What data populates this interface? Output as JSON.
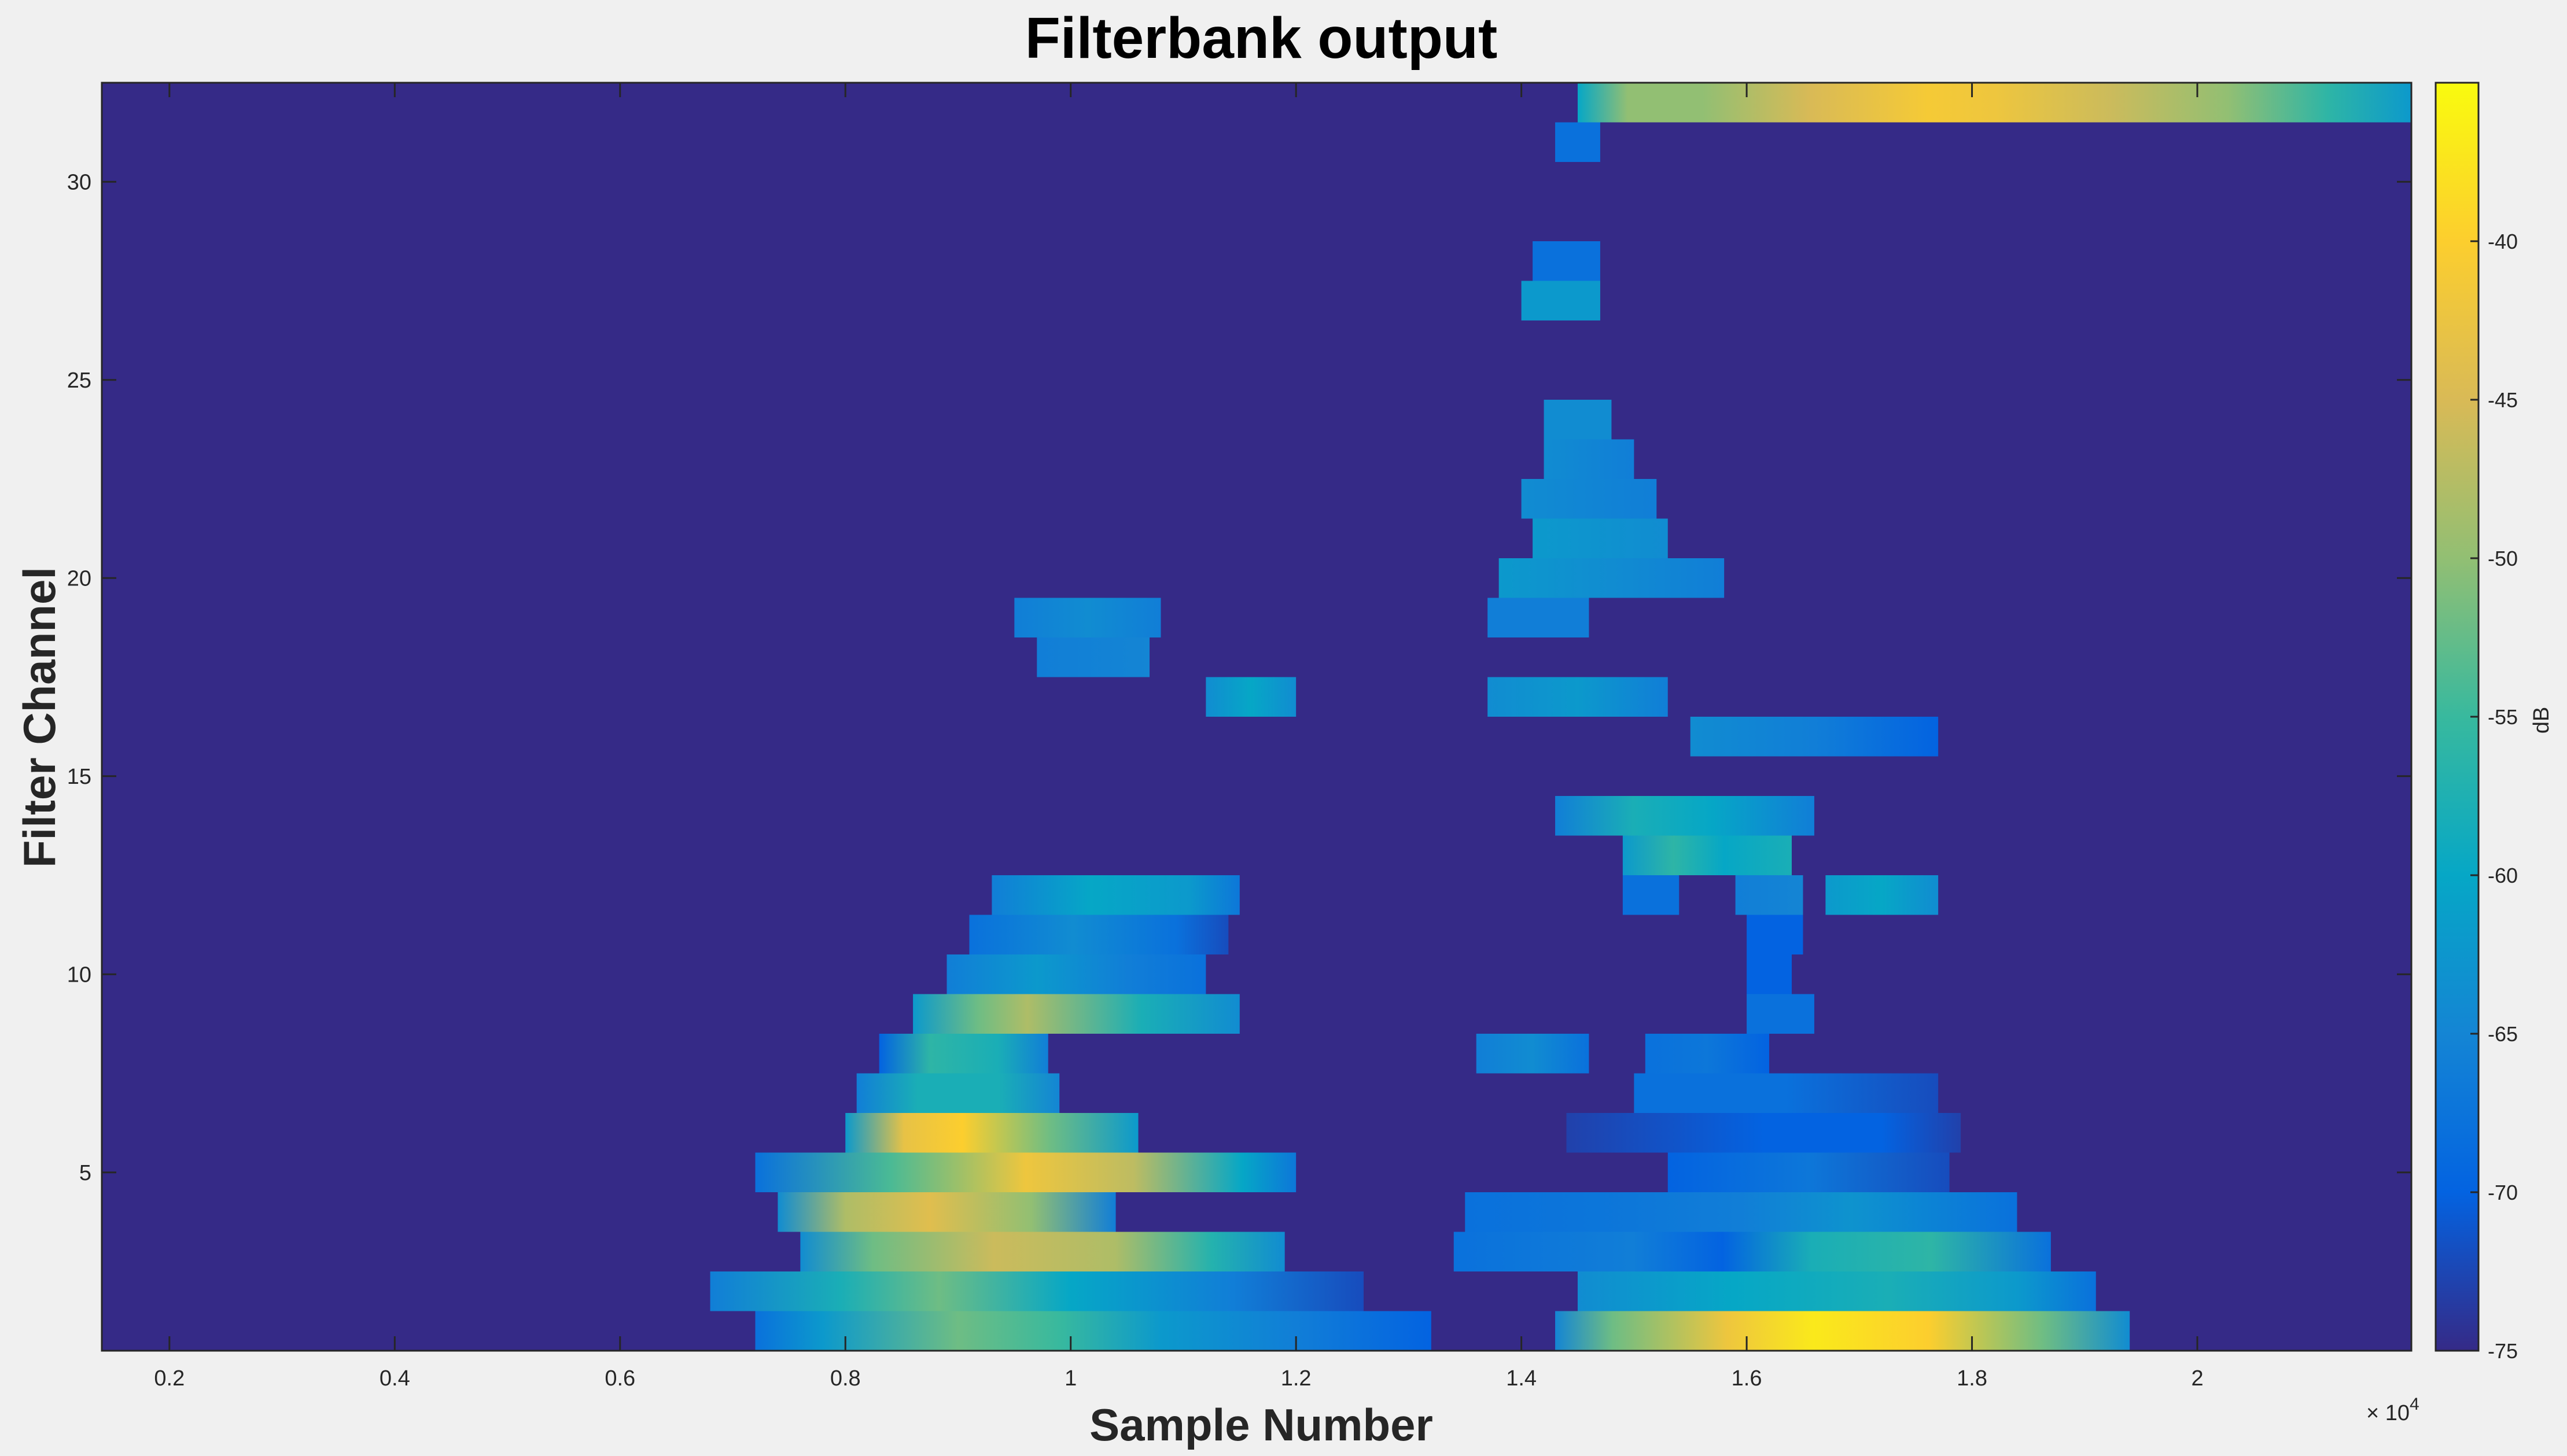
{
  "chart_data": {
    "type": "heatmap",
    "title": "Filterbank output",
    "xlabel": "Sample Number",
    "ylabel": "Filter Channel",
    "x_exponent_label": "× 10^4",
    "x_exponent_base": "× 10",
    "x_exponent_power": "4",
    "xlim": [
      0.14,
      2.19
    ],
    "ylim": [
      0.5,
      32.5
    ],
    "xticks": [
      0.2,
      0.4,
      0.6,
      0.8,
      1,
      1.2,
      1.4,
      1.6,
      1.8,
      2
    ],
    "xtick_labels": [
      "0.2",
      "0.4",
      "0.6",
      "0.8",
      "1",
      "1.2",
      "1.4",
      "1.6",
      "1.8",
      "2"
    ],
    "yticks": [
      5,
      10,
      15,
      20,
      25,
      30
    ],
    "ytick_labels": [
      "5",
      "10",
      "15",
      "20",
      "25",
      "30"
    ],
    "colorbar": {
      "label": "dB",
      "range": [
        -75,
        -35
      ],
      "ticks": [
        -75,
        -70,
        -65,
        -60,
        -55,
        -50,
        -45,
        -40
      ],
      "tick_labels": [
        "-75",
        "-70",
        "-65",
        "-60",
        "-55",
        "-50",
        "-45",
        "-40"
      ],
      "colormap": [
        "#352a87",
        "#0363e1",
        "#1485d4",
        "#06a7c6",
        "#38b99e",
        "#92bf73",
        "#d9ba56",
        "#fcce2e",
        "#f9fb0e"
      ]
    },
    "background_db": -75,
    "regions": [
      {
        "ch": 1,
        "x0": 0.72,
        "x1": 1.32,
        "stops": [
          [
            0,
            -68
          ],
          [
            0.1,
            -62
          ],
          [
            0.3,
            -52
          ],
          [
            0.45,
            -55
          ],
          [
            0.6,
            -62
          ],
          [
            0.8,
            -66
          ],
          [
            1,
            -70
          ]
        ]
      },
      {
        "ch": 1,
        "x0": 1.43,
        "x1": 1.94,
        "stops": [
          [
            0,
            -65
          ],
          [
            0.1,
            -52
          ],
          [
            0.3,
            -42
          ],
          [
            0.45,
            -37
          ],
          [
            0.65,
            -40
          ],
          [
            0.85,
            -52
          ],
          [
            1,
            -64
          ]
        ]
      },
      {
        "ch": 2,
        "x0": 0.68,
        "x1": 1.26,
        "stops": [
          [
            0,
            -66
          ],
          [
            0.2,
            -58
          ],
          [
            0.35,
            -52
          ],
          [
            0.55,
            -60
          ],
          [
            0.8,
            -66
          ],
          [
            1,
            -72
          ]
        ]
      },
      {
        "ch": 2,
        "x0": 1.45,
        "x1": 1.91,
        "stops": [
          [
            0,
            -64
          ],
          [
            0.3,
            -60
          ],
          [
            0.6,
            -58
          ],
          [
            0.85,
            -62
          ],
          [
            1,
            -68
          ]
        ]
      },
      {
        "ch": 3,
        "x0": 0.76,
        "x1": 1.19,
        "stops": [
          [
            0,
            -64
          ],
          [
            0.15,
            -52
          ],
          [
            0.4,
            -46
          ],
          [
            0.65,
            -48
          ],
          [
            0.85,
            -57
          ],
          [
            1,
            -64
          ]
        ]
      },
      {
        "ch": 3,
        "x0": 1.34,
        "x1": 1.87,
        "stops": [
          [
            0,
            -68
          ],
          [
            0.3,
            -66
          ],
          [
            0.45,
            -70
          ],
          [
            0.6,
            -58
          ],
          [
            0.8,
            -56
          ],
          [
            1,
            -68
          ]
        ]
      },
      {
        "ch": 4,
        "x0": 0.74,
        "x1": 1.04,
        "stops": [
          [
            0,
            -64
          ],
          [
            0.2,
            -48
          ],
          [
            0.45,
            -44
          ],
          [
            0.75,
            -50
          ],
          [
            1,
            -66
          ]
        ]
      },
      {
        "ch": 4,
        "x0": 1.35,
        "x1": 1.84,
        "stops": [
          [
            0,
            -68
          ],
          [
            0.3,
            -67
          ],
          [
            0.5,
            -66
          ],
          [
            0.7,
            -63
          ],
          [
            1,
            -68
          ]
        ]
      },
      {
        "ch": 5,
        "x0": 0.72,
        "x1": 1.2,
        "stops": [
          [
            0,
            -68
          ],
          [
            0.25,
            -54
          ],
          [
            0.5,
            -42
          ],
          [
            0.7,
            -47
          ],
          [
            0.9,
            -60
          ],
          [
            1,
            -67
          ]
        ]
      },
      {
        "ch": 5,
        "x0": 1.53,
        "x1": 1.78,
        "stops": [
          [
            0,
            -70
          ],
          [
            0.5,
            -67
          ],
          [
            1,
            -72
          ]
        ]
      },
      {
        "ch": 6,
        "x0": 0.8,
        "x1": 1.06,
        "stops": [
          [
            0,
            -62
          ],
          [
            0.2,
            -43
          ],
          [
            0.4,
            -40
          ],
          [
            0.7,
            -52
          ],
          [
            1,
            -62
          ]
        ]
      },
      {
        "ch": 6,
        "x0": 1.44,
        "x1": 1.79,
        "stops": [
          [
            0,
            -73
          ],
          [
            0.5,
            -70
          ],
          [
            0.8,
            -70
          ],
          [
            1,
            -73
          ]
        ]
      },
      {
        "ch": 7,
        "x0": 0.81,
        "x1": 0.99,
        "stops": [
          [
            0,
            -66
          ],
          [
            0.3,
            -58
          ],
          [
            0.7,
            -58
          ],
          [
            1,
            -65
          ]
        ]
      },
      {
        "ch": 7,
        "x0": 1.5,
        "x1": 1.77,
        "stops": [
          [
            0,
            -68
          ],
          [
            0.5,
            -68
          ],
          [
            1,
            -72
          ]
        ]
      },
      {
        "ch": 8,
        "x0": 0.83,
        "x1": 0.98,
        "stops": [
          [
            0,
            -70
          ],
          [
            0.3,
            -56
          ],
          [
            0.7,
            -58
          ],
          [
            1,
            -66
          ]
        ]
      },
      {
        "ch": 8,
        "x0": 1.36,
        "x1": 1.46,
        "stops": [
          [
            0,
            -66
          ],
          [
            0.5,
            -64
          ],
          [
            1,
            -68
          ]
        ]
      },
      {
        "ch": 8,
        "x0": 1.51,
        "x1": 1.62,
        "stops": [
          [
            0,
            -68
          ],
          [
            0.5,
            -67
          ],
          [
            1,
            -70
          ]
        ]
      },
      {
        "ch": 9,
        "x0": 0.86,
        "x1": 1.15,
        "stops": [
          [
            0,
            -62
          ],
          [
            0.2,
            -52
          ],
          [
            0.35,
            -48
          ],
          [
            0.7,
            -58
          ],
          [
            1,
            -64
          ]
        ]
      },
      {
        "ch": 9,
        "x0": 1.6,
        "x1": 1.66,
        "stops": [
          [
            0,
            -68
          ],
          [
            1,
            -68
          ]
        ]
      },
      {
        "ch": 10,
        "x0": 0.89,
        "x1": 1.12,
        "stops": [
          [
            0,
            -66
          ],
          [
            0.35,
            -62
          ],
          [
            0.7,
            -66
          ],
          [
            1,
            -68
          ]
        ]
      },
      {
        "ch": 10,
        "x0": 1.6,
        "x1": 1.64,
        "stops": [
          [
            0,
            -70
          ],
          [
            1,
            -70
          ]
        ]
      },
      {
        "ch": 11,
        "x0": 0.91,
        "x1": 1.14,
        "stops": [
          [
            0,
            -68
          ],
          [
            0.4,
            -64
          ],
          [
            0.8,
            -68
          ],
          [
            1,
            -72
          ]
        ]
      },
      {
        "ch": 11,
        "x0": 1.6,
        "x1": 1.65,
        "stops": [
          [
            0,
            -70
          ],
          [
            1,
            -70
          ]
        ]
      },
      {
        "ch": 12,
        "x0": 0.93,
        "x1": 1.15,
        "stops": [
          [
            0,
            -66
          ],
          [
            0.4,
            -60
          ],
          [
            0.8,
            -62
          ],
          [
            1,
            -67
          ]
        ]
      },
      {
        "ch": 12,
        "x0": 1.49,
        "x1": 1.54,
        "stops": [
          [
            0,
            -68
          ],
          [
            1,
            -68
          ]
        ]
      },
      {
        "ch": 12,
        "x0": 1.59,
        "x1": 1.65,
        "stops": [
          [
            0,
            -66
          ],
          [
            1,
            -65
          ]
        ]
      },
      {
        "ch": 12,
        "x0": 1.67,
        "x1": 1.77,
        "stops": [
          [
            0,
            -62
          ],
          [
            0.5,
            -60
          ],
          [
            1,
            -64
          ]
        ]
      },
      {
        "ch": 13,
        "x0": 1.49,
        "x1": 1.64,
        "stops": [
          [
            0,
            -62
          ],
          [
            0.3,
            -56
          ],
          [
            0.6,
            -60
          ],
          [
            1,
            -58
          ]
        ]
      },
      {
        "ch": 14,
        "x0": 1.43,
        "x1": 1.66,
        "stops": [
          [
            0,
            -66
          ],
          [
            0.3,
            -58
          ],
          [
            0.6,
            -60
          ],
          [
            1,
            -66
          ]
        ]
      },
      {
        "ch": 16,
        "x0": 1.55,
        "x1": 1.77,
        "stops": [
          [
            0,
            -64
          ],
          [
            0.5,
            -66
          ],
          [
            1,
            -70
          ]
        ]
      },
      {
        "ch": 17,
        "x0": 1.12,
        "x1": 1.2,
        "stops": [
          [
            0,
            -64
          ],
          [
            0.5,
            -60
          ],
          [
            1,
            -64
          ]
        ]
      },
      {
        "ch": 17,
        "x0": 1.37,
        "x1": 1.53,
        "stops": [
          [
            0,
            -64
          ],
          [
            0.5,
            -62
          ],
          [
            1,
            -66
          ]
        ]
      },
      {
        "ch": 18,
        "x0": 0.97,
        "x1": 1.07,
        "stops": [
          [
            0,
            -66
          ],
          [
            1,
            -65
          ]
        ]
      },
      {
        "ch": 19,
        "x0": 0.95,
        "x1": 1.08,
        "stops": [
          [
            0,
            -66
          ],
          [
            0.5,
            -64
          ],
          [
            1,
            -66
          ]
        ]
      },
      {
        "ch": 19,
        "x0": 1.37,
        "x1": 1.46,
        "stops": [
          [
            0,
            -66
          ],
          [
            1,
            -66
          ]
        ]
      },
      {
        "ch": 20,
        "x0": 1.38,
        "x1": 1.58,
        "stops": [
          [
            0,
            -62
          ],
          [
            0.5,
            -64
          ],
          [
            1,
            -66
          ]
        ]
      },
      {
        "ch": 21,
        "x0": 1.41,
        "x1": 1.53,
        "stops": [
          [
            0,
            -62
          ],
          [
            1,
            -64
          ]
        ]
      },
      {
        "ch": 22,
        "x0": 1.4,
        "x1": 1.52,
        "stops": [
          [
            0,
            -64
          ],
          [
            1,
            -66
          ]
        ]
      },
      {
        "ch": 23,
        "x0": 1.42,
        "x1": 1.5,
        "stops": [
          [
            0,
            -64
          ],
          [
            1,
            -66
          ]
        ]
      },
      {
        "ch": 24,
        "x0": 1.42,
        "x1": 1.48,
        "stops": [
          [
            0,
            -64
          ],
          [
            1,
            -64
          ]
        ]
      },
      {
        "ch": 27,
        "x0": 1.4,
        "x1": 1.47,
        "stops": [
          [
            0,
            -62
          ],
          [
            1,
            -62
          ]
        ]
      },
      {
        "ch": 28,
        "x0": 1.41,
        "x1": 1.47,
        "stops": [
          [
            0,
            -68
          ],
          [
            1,
            -68
          ]
        ]
      },
      {
        "ch": 31,
        "x0": 1.43,
        "x1": 1.47,
        "stops": [
          [
            0,
            -68
          ],
          [
            1,
            -68
          ]
        ]
      },
      {
        "ch": 32,
        "x0": 1.45,
        "x1": 2.19,
        "stops": [
          [
            0,
            -60
          ],
          [
            0.06,
            -50
          ],
          [
            0.15,
            -50
          ],
          [
            0.28,
            -45
          ],
          [
            0.42,
            -41
          ],
          [
            0.5,
            -42
          ],
          [
            0.64,
            -46
          ],
          [
            0.78,
            -50
          ],
          [
            0.9,
            -56
          ],
          [
            1,
            -62
          ]
        ]
      }
    ]
  }
}
